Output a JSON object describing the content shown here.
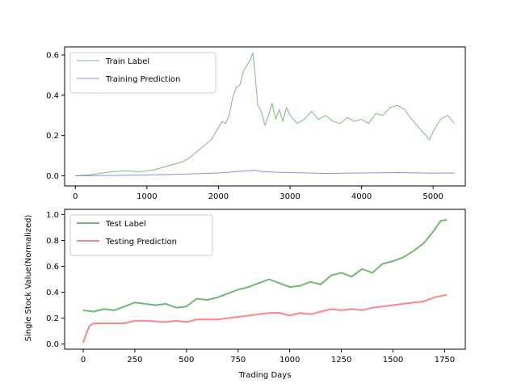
{
  "figure": {
    "ylabel": "Single Stock Value(Normalized)"
  },
  "chart_data": [
    {
      "type": "line",
      "xlim": [
        -150,
        5450
      ],
      "ylim": [
        -0.05,
        0.64
      ],
      "xticks": [
        0,
        1000,
        2000,
        3000,
        4000,
        5000
      ],
      "yticks": [
        0.0,
        0.2,
        0.4,
        0.6
      ],
      "xlabel": "",
      "ylabel": "",
      "legend": "top-left",
      "grid": false,
      "series": [
        {
          "name": "Train Label",
          "color": "#4ca64c",
          "width": 1,
          "x": [
            0,
            200,
            400,
            500,
            700,
            900,
            1000,
            1100,
            1300,
            1500,
            1600,
            1700,
            1800,
            1900,
            2000,
            2050,
            2100,
            2150,
            2200,
            2250,
            2300,
            2350,
            2400,
            2450,
            2480,
            2500,
            2550,
            2600,
            2650,
            2700,
            2750,
            2800,
            2850,
            2900,
            2950,
            3000,
            3100,
            3200,
            3300,
            3400,
            3500,
            3600,
            3700,
            3800,
            3900,
            4000,
            4100,
            4200,
            4300,
            4400,
            4500,
            4600,
            4700,
            4800,
            4900,
            4950,
            5000,
            5050,
            5100,
            5200,
            5300
          ],
          "y": [
            0.0,
            0.005,
            0.015,
            0.02,
            0.025,
            0.02,
            0.025,
            0.03,
            0.05,
            0.07,
            0.09,
            0.12,
            0.15,
            0.18,
            0.24,
            0.27,
            0.26,
            0.3,
            0.39,
            0.44,
            0.45,
            0.52,
            0.55,
            0.58,
            0.61,
            0.55,
            0.35,
            0.32,
            0.25,
            0.3,
            0.36,
            0.28,
            0.33,
            0.27,
            0.34,
            0.3,
            0.26,
            0.28,
            0.32,
            0.28,
            0.3,
            0.27,
            0.26,
            0.29,
            0.27,
            0.28,
            0.26,
            0.31,
            0.3,
            0.34,
            0.35,
            0.33,
            0.28,
            0.24,
            0.2,
            0.18,
            0.22,
            0.25,
            0.28,
            0.3,
            0.26
          ]
        },
        {
          "name": "Training Prediction",
          "color": "#6666e6",
          "width": 1,
          "x": [
            0,
            500,
            1000,
            1500,
            2000,
            2200,
            2400,
            2500,
            2600,
            2800,
            3000,
            3500,
            4000,
            4500,
            5000,
            5300
          ],
          "y": [
            0.0,
            0.002,
            0.004,
            0.008,
            0.014,
            0.02,
            0.025,
            0.027,
            0.022,
            0.018,
            0.016,
            0.012,
            0.014,
            0.016,
            0.013,
            0.014
          ]
        }
      ]
    },
    {
      "type": "line",
      "xlim": [
        -90,
        1850
      ],
      "ylim": [
        -0.04,
        1.04
      ],
      "xticks": [
        0,
        250,
        500,
        750,
        1000,
        1250,
        1500,
        1750
      ],
      "yticks": [
        0.0,
        0.2,
        0.4,
        0.6,
        0.8,
        1.0
      ],
      "xlabel": "Trading Days",
      "ylabel": "",
      "legend": "top-left",
      "grid": false,
      "series": [
        {
          "name": "Test Label",
          "color": "#4ca64c",
          "width": 2,
          "x": [
            0,
            50,
            100,
            150,
            200,
            250,
            300,
            350,
            400,
            450,
            500,
            550,
            600,
            650,
            700,
            750,
            800,
            850,
            900,
            950,
            1000,
            1050,
            1100,
            1150,
            1200,
            1250,
            1300,
            1350,
            1400,
            1450,
            1500,
            1550,
            1600,
            1650,
            1700,
            1730,
            1760
          ],
          "y": [
            0.26,
            0.25,
            0.27,
            0.26,
            0.29,
            0.32,
            0.31,
            0.3,
            0.31,
            0.28,
            0.29,
            0.35,
            0.34,
            0.36,
            0.39,
            0.42,
            0.44,
            0.47,
            0.5,
            0.47,
            0.44,
            0.45,
            0.48,
            0.46,
            0.53,
            0.55,
            0.52,
            0.58,
            0.55,
            0.62,
            0.64,
            0.67,
            0.72,
            0.78,
            0.88,
            0.95,
            0.96
          ]
        },
        {
          "name": "Testing Prediction",
          "color": "#ff6666",
          "width": 2,
          "x": [
            0,
            15,
            30,
            50,
            80,
            120,
            200,
            250,
            300,
            400,
            450,
            500,
            550,
            600,
            650,
            700,
            750,
            800,
            850,
            900,
            950,
            1000,
            1050,
            1100,
            1150,
            1200,
            1250,
            1300,
            1350,
            1400,
            1450,
            1500,
            1550,
            1600,
            1650,
            1700,
            1760
          ],
          "y": [
            0.01,
            0.08,
            0.14,
            0.16,
            0.16,
            0.16,
            0.16,
            0.18,
            0.18,
            0.17,
            0.18,
            0.17,
            0.19,
            0.19,
            0.19,
            0.2,
            0.21,
            0.22,
            0.23,
            0.24,
            0.24,
            0.22,
            0.24,
            0.23,
            0.25,
            0.27,
            0.26,
            0.27,
            0.26,
            0.28,
            0.29,
            0.3,
            0.31,
            0.32,
            0.33,
            0.36,
            0.38
          ]
        }
      ]
    }
  ]
}
